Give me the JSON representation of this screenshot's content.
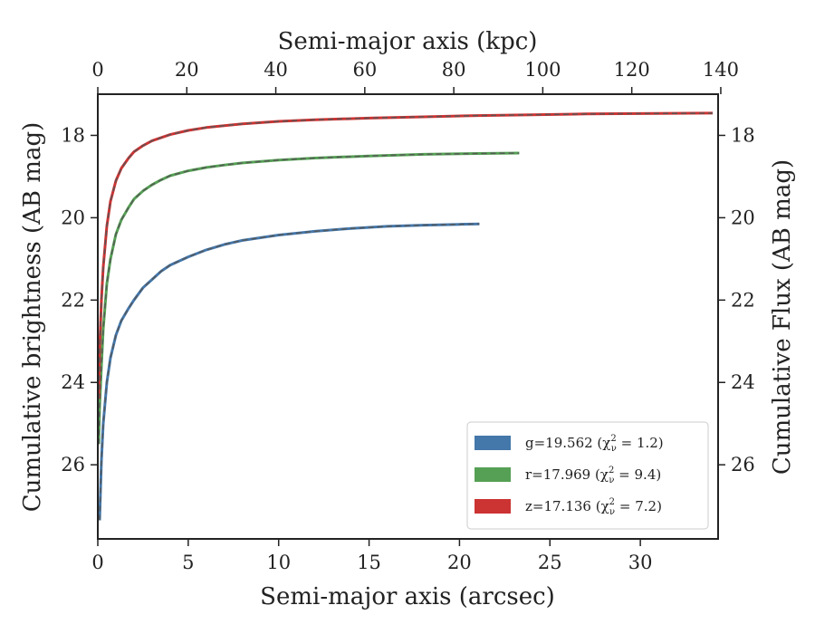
{
  "chart_data": {
    "type": "line",
    "xlabel": "Semi-major axis (arcsec)",
    "x2label": "Semi-major axis (kpc)",
    "ylabel": "Cumulative brightness (AB mag)",
    "y2label": "Cumulative Flux (AB mag)",
    "xlim": [
      0,
      34.3
    ],
    "ylim": [
      27.8,
      17.0
    ],
    "x2lim": [
      0,
      139.4
    ],
    "y_inverted": true,
    "x_ticks": [
      0,
      5,
      10,
      15,
      20,
      25,
      30
    ],
    "x2_ticks": [
      0,
      20,
      40,
      60,
      80,
      100,
      120,
      140
    ],
    "y_ticks": [
      18,
      20,
      22,
      24,
      26
    ],
    "grid": false,
    "legend_position": "lower-right",
    "legend": [
      {
        "band": "g",
        "text": "g=19.562 (χ",
        "sup": "2",
        "sub": "ν",
        "tail": " = 1.2)"
      },
      {
        "band": "r",
        "text": "r=17.969 (χ",
        "sup": "2",
        "sub": "ν",
        "tail": " = 9.4)"
      },
      {
        "band": "z",
        "text": "z=17.136 (χ",
        "sup": "2",
        "sub": "ν",
        "tail": " = 7.2)"
      }
    ],
    "series": [
      {
        "band": "g",
        "color": "#4477aa",
        "x": [
          0.1,
          0.2,
          0.3,
          0.5,
          0.7,
          1.0,
          1.3,
          1.7,
          2.0,
          2.5,
          3.0,
          3.5,
          4.0,
          5.0,
          6.0,
          7.0,
          8.0,
          10.0,
          12.0,
          14.0,
          16.0,
          18.0,
          20.0,
          21.1
        ],
        "y": [
          27.35,
          25.9,
          25.0,
          24.0,
          23.4,
          22.85,
          22.5,
          22.2,
          22.0,
          21.7,
          21.5,
          21.3,
          21.15,
          20.95,
          20.78,
          20.65,
          20.55,
          20.42,
          20.33,
          20.26,
          20.21,
          20.18,
          20.16,
          20.15
        ]
      },
      {
        "band": "r",
        "color": "#55a055",
        "x": [
          0.05,
          0.1,
          0.2,
          0.3,
          0.5,
          0.7,
          1.0,
          1.3,
          1.7,
          2.0,
          2.5,
          3.0,
          3.5,
          4.0,
          5.0,
          6.0,
          7.0,
          8.0,
          10.0,
          12.0,
          15.0,
          18.0,
          21.0,
          23.3
        ],
        "y": [
          25.5,
          24.6,
          23.6,
          22.7,
          21.6,
          21.0,
          20.4,
          20.05,
          19.75,
          19.55,
          19.35,
          19.2,
          19.08,
          18.98,
          18.86,
          18.78,
          18.72,
          18.67,
          18.6,
          18.55,
          18.5,
          18.46,
          18.44,
          18.43
        ]
      },
      {
        "band": "z",
        "color": "#cc3333",
        "x": [
          0.05,
          0.1,
          0.2,
          0.3,
          0.5,
          0.7,
          1.0,
          1.3,
          1.7,
          2.0,
          2.5,
          3.0,
          4.0,
          5.0,
          6.0,
          8.0,
          10.0,
          12.0,
          15.0,
          18.0,
          21.0,
          24.0,
          27.0,
          30.0,
          34.0
        ],
        "y": [
          24.4,
          23.2,
          22.0,
          21.2,
          20.2,
          19.6,
          19.1,
          18.8,
          18.55,
          18.4,
          18.25,
          18.13,
          17.98,
          17.88,
          17.81,
          17.72,
          17.66,
          17.62,
          17.58,
          17.55,
          17.52,
          17.5,
          17.48,
          17.47,
          17.46
        ]
      }
    ]
  }
}
